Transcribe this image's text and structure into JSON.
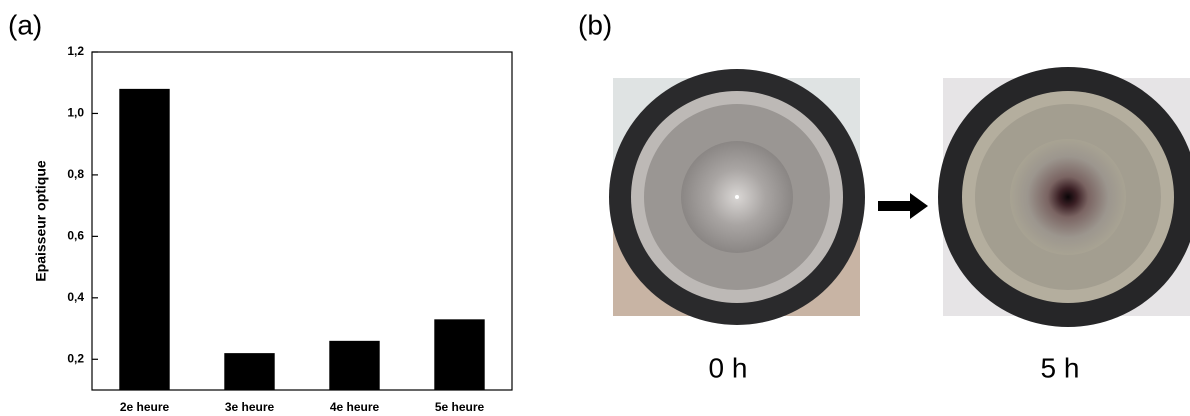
{
  "panel_labels": [
    "(a)",
    "(b)"
  ],
  "chart_data": {
    "type": "bar",
    "y_label": "Epaisseur optique",
    "categories": [
      "2e heure",
      "3e heure",
      "4e heure",
      "5e heure"
    ],
    "values": [
      1.08,
      0.22,
      0.26,
      0.33
    ],
    "color": "#000000",
    "ylim": [
      0.1,
      1.2
    ],
    "yticks": [
      {
        "value": 0.2,
        "label": "0,2"
      },
      {
        "value": 0.4,
        "label": "0,4"
      },
      {
        "value": 0.6,
        "label": "0,6"
      },
      {
        "value": 0.8,
        "label": "0,8"
      },
      {
        "value": 1.0,
        "label": "1,0"
      },
      {
        "value": 1.2,
        "label": "1,2"
      }
    ],
    "grid": false
  },
  "photos": [
    {
      "label": "0 h"
    },
    {
      "label": "5 h"
    }
  ]
}
